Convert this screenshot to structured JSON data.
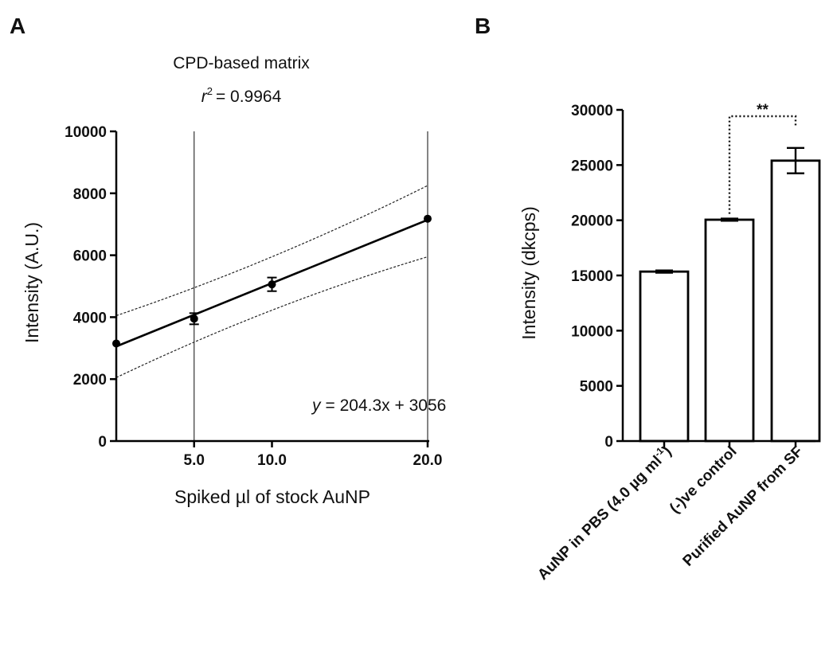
{
  "chart_data": [
    {
      "panel": "A",
      "type": "scatter",
      "title": "CPD-based matrix",
      "r2": {
        "prefix": "r",
        "sup": "2",
        "value": "= 0.9964"
      },
      "equation": {
        "var": "y",
        "rest": "= 204.3x + 3056"
      },
      "xlabel": "Spiked µl of stock AuNP",
      "ylabel": "Intensity (A.U.)",
      "xlim": [
        0,
        20
      ],
      "ylim": [
        0,
        10000
      ],
      "x_ticks": [
        "5.0",
        "10.0",
        "20.0"
      ],
      "y_ticks": [
        "0",
        "2000",
        "4000",
        "6000",
        "8000",
        "10000"
      ],
      "vertical_lines_x": [
        5,
        20
      ],
      "points": [
        {
          "x": 0,
          "y": 3150,
          "err": 0
        },
        {
          "x": 5,
          "y": 3950,
          "err": 180
        },
        {
          "x": 10,
          "y": 5060,
          "err": 220
        },
        {
          "x": 20,
          "y": 7180,
          "err": 0
        }
      ],
      "fit": {
        "slope": 204.3,
        "intercept": 3056
      },
      "ci_upper": [
        {
          "x": 0,
          "y": 4050
        },
        {
          "x": 10,
          "y": 5750
        },
        {
          "x": 20,
          "y": 8250
        }
      ],
      "ci_lower": [
        {
          "x": 0,
          "y": 2050
        },
        {
          "x": 10,
          "y": 4450
        },
        {
          "x": 20,
          "y": 5950
        }
      ]
    },
    {
      "panel": "B",
      "type": "bar",
      "ylabel": "Intensity (dkcps)",
      "ylim": [
        0,
        30000
      ],
      "y_ticks": [
        "0",
        "5000",
        "10000",
        "15000",
        "20000",
        "25000",
        "30000"
      ],
      "categories": [
        {
          "main": "AuNP in PBS (4.0 µg ml",
          "sup": "-1",
          "tail": ")"
        },
        {
          "main": "(-)ve control",
          "sup": "",
          "tail": ""
        },
        {
          "main": "Purified AuNP from SF",
          "sup": "",
          "tail": ""
        }
      ],
      "values": [
        15350,
        20050,
        25400
      ],
      "errors": [
        100,
        100,
        1150
      ],
      "significance": {
        "label": "**",
        "between": [
          1,
          2
        ]
      }
    }
  ]
}
